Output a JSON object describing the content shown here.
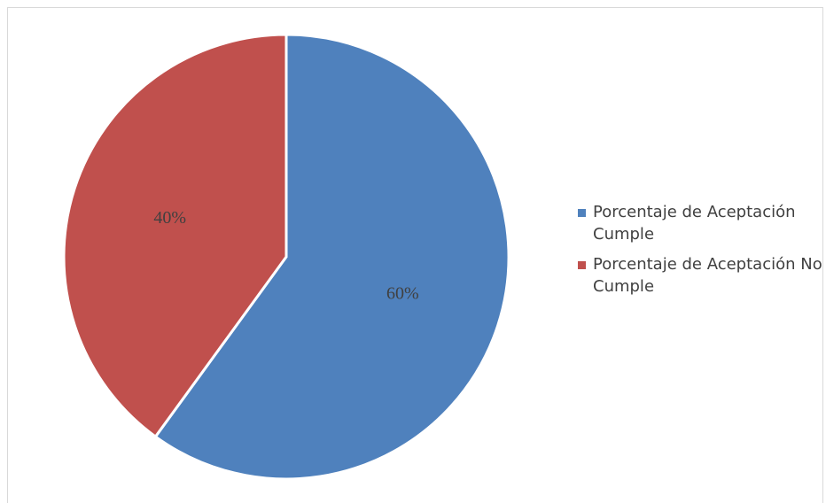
{
  "chart_data": {
    "type": "pie",
    "title": "",
    "slices": [
      {
        "label": "Porcentaje de Aceptación Cumple",
        "value": 60,
        "display": "60%",
        "color": "#4f81bd"
      },
      {
        "label": "Porcentaje de Aceptación No Cumple",
        "value": 40,
        "display": "40%",
        "color": "#c0504d"
      }
    ],
    "legend_position": "right",
    "start_angle_deg": 0,
    "direction": "clockwise"
  }
}
